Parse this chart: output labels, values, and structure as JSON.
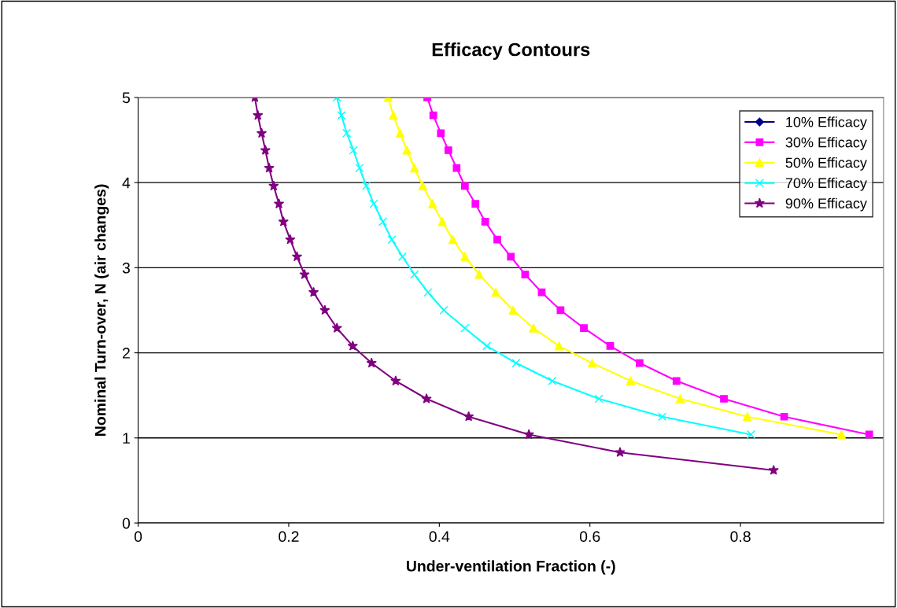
{
  "chart_data": {
    "type": "line",
    "title": "Efficacy Contours",
    "xlabel": "Under-ventilation Fraction (-)",
    "ylabel": "Nominal Turn-over, N (air changes)",
    "xlim": [
      0,
      0.99
    ],
    "xticks": [
      0,
      0.2,
      0.4,
      0.6,
      0.8
    ],
    "ylim": [
      0,
      5
    ],
    "yticks": [
      0,
      1,
      2,
      3,
      4,
      5
    ],
    "grid": "y",
    "legend": "top right",
    "series": [
      {
        "name": "10% Efficacy",
        "color": "#000080",
        "marker": "diamond"
      },
      {
        "name": "30% Efficacy",
        "color": "#ff00ff",
        "marker": "square",
        "x": [
          0.384,
          0.392,
          0.402,
          0.412,
          0.423,
          0.434,
          0.448,
          0.461,
          0.477,
          0.495,
          0.514,
          0.536,
          0.561,
          0.592,
          0.627,
          0.666,
          0.715,
          0.778,
          0.858,
          0.971
        ],
        "values": [
          5,
          4.79,
          4.58,
          4.38,
          4.17,
          3.96,
          3.75,
          3.54,
          3.33,
          3.13,
          2.92,
          2.71,
          2.5,
          2.29,
          2.08,
          1.88,
          1.67,
          1.46,
          1.25,
          1.04
        ]
      },
      {
        "name": "50% Efficacy",
        "color": "#ffff00",
        "marker": "triangle",
        "x": [
          0.332,
          0.339,
          0.348,
          0.357,
          0.367,
          0.378,
          0.391,
          0.404,
          0.418,
          0.434,
          0.453,
          0.475,
          0.498,
          0.525,
          0.559,
          0.603,
          0.654,
          0.72,
          0.809,
          0.934
        ],
        "values": [
          5,
          4.79,
          4.58,
          4.38,
          4.17,
          3.96,
          3.75,
          3.54,
          3.33,
          3.13,
          2.92,
          2.71,
          2.5,
          2.29,
          2.08,
          1.88,
          1.67,
          1.46,
          1.25,
          1.04
        ]
      },
      {
        "name": "70% Efficacy",
        "color": "#00ffff",
        "marker": "cross",
        "x": [
          0.264,
          0.27,
          0.277,
          0.286,
          0.294,
          0.303,
          0.313,
          0.325,
          0.337,
          0.351,
          0.367,
          0.385,
          0.406,
          0.434,
          0.463,
          0.502,
          0.55,
          0.612,
          0.696,
          0.814
        ],
        "values": [
          5,
          4.79,
          4.58,
          4.38,
          4.17,
          3.96,
          3.75,
          3.54,
          3.33,
          3.13,
          2.92,
          2.71,
          2.5,
          2.29,
          2.08,
          1.88,
          1.67,
          1.46,
          1.25,
          1.04
        ]
      },
      {
        "name": "90% Efficacy",
        "color": "#800080",
        "marker": "star",
        "x": [
          0.155,
          0.159,
          0.164,
          0.169,
          0.174,
          0.18,
          0.187,
          0.193,
          0.202,
          0.211,
          0.221,
          0.233,
          0.248,
          0.264,
          0.285,
          0.31,
          0.342,
          0.383,
          0.439,
          0.519,
          0.64,
          0.844
        ],
        "values": [
          5,
          4.79,
          4.58,
          4.38,
          4.17,
          3.96,
          3.75,
          3.54,
          3.33,
          3.13,
          2.92,
          2.71,
          2.5,
          2.29,
          2.08,
          1.88,
          1.67,
          1.46,
          1.25,
          1.04,
          0.83,
          0.62
        ]
      }
    ]
  }
}
